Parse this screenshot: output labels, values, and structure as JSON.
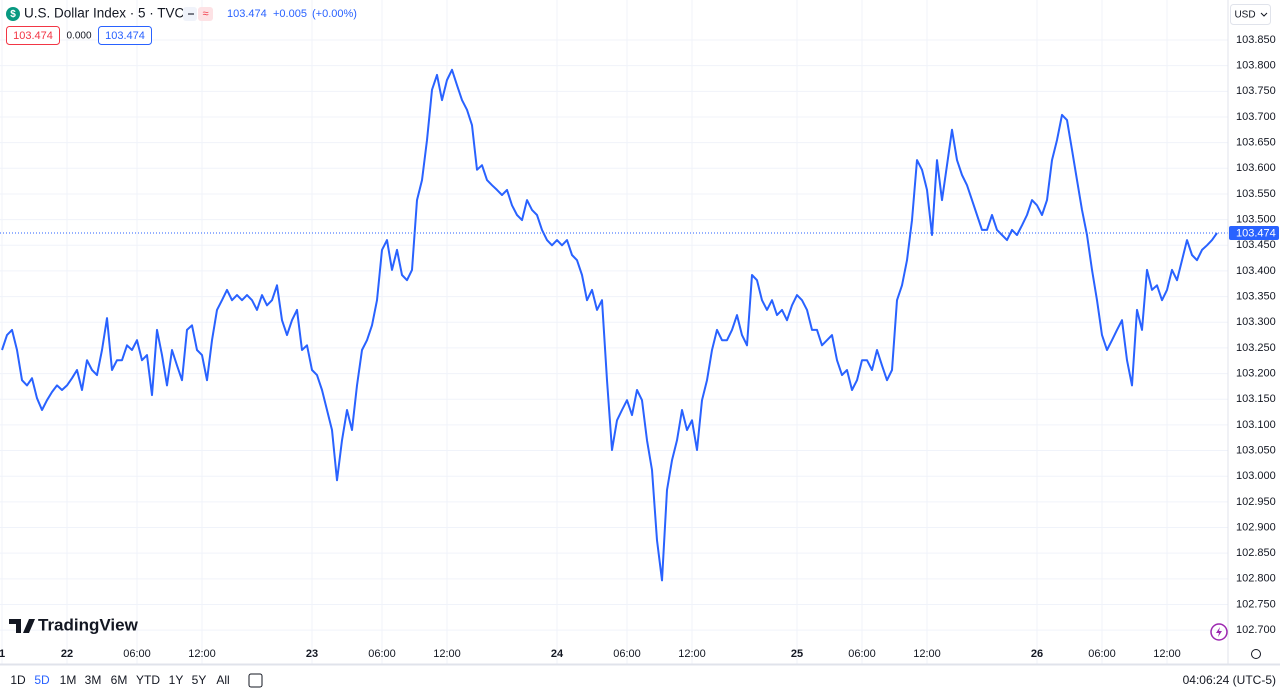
{
  "header": {
    "symbol": "U.S. Dollar Index · 5 · TVC",
    "price": "103.474",
    "change": "+0.005",
    "change_pct": "(+0.00%)",
    "boxes": [
      "103.474",
      "0.000",
      "103.474"
    ],
    "currency": "USD"
  },
  "price_tag": "103.474",
  "watermark": "TradingView",
  "toolbar": {
    "ranges": [
      "1D",
      "5D",
      "1M",
      "3M",
      "6M",
      "YTD",
      "1Y",
      "5Y",
      "All"
    ],
    "clock": "04:06:24 (UTC-5)"
  },
  "chart_data": {
    "type": "line",
    "color": "#2962ff",
    "grid": true,
    "ylim": [
      102.634,
      103.928
    ],
    "yticks": [
      {
        "value": 102.7,
        "label": "102.700"
      },
      {
        "value": 102.75,
        "label": "102.750"
      },
      {
        "value": 102.8,
        "label": "102.800"
      },
      {
        "value": 102.85,
        "label": "102.850"
      },
      {
        "value": 102.9,
        "label": "102.900"
      },
      {
        "value": 102.95,
        "label": "102.950"
      },
      {
        "value": 103.0,
        "label": "103.000"
      },
      {
        "value": 103.05,
        "label": "103.050"
      },
      {
        "value": 103.1,
        "label": "103.100"
      },
      {
        "value": 103.15,
        "label": "103.150"
      },
      {
        "value": 103.2,
        "label": "103.200"
      },
      {
        "value": 103.25,
        "label": "103.250"
      },
      {
        "value": 103.3,
        "label": "103.300"
      },
      {
        "value": 103.35,
        "label": "103.350"
      },
      {
        "value": 103.4,
        "label": "103.400"
      },
      {
        "value": 103.45,
        "label": "103.450"
      },
      {
        "value": 103.5,
        "label": "103.500"
      },
      {
        "value": 103.55,
        "label": "103.550"
      },
      {
        "value": 103.6,
        "label": "103.600"
      },
      {
        "value": 103.65,
        "label": "103.650"
      },
      {
        "value": 103.7,
        "label": "103.700"
      },
      {
        "value": 103.75,
        "label": "103.750"
      },
      {
        "value": 103.8,
        "label": "103.800"
      },
      {
        "value": 103.85,
        "label": "103.850"
      }
    ],
    "categories": [
      "1",
      null,
      null,
      null,
      null,
      null,
      null,
      null,
      null,
      null,
      null,
      null,
      null,
      "22",
      null,
      null,
      null,
      null,
      null,
      null,
      null,
      null,
      null,
      null,
      null,
      null,
      null,
      "06:00",
      null,
      null,
      null,
      null,
      null,
      null,
      null,
      null,
      null,
      null,
      null,
      null,
      "12:00",
      null,
      null,
      null,
      null,
      null,
      null,
      null,
      null,
      null,
      null,
      null,
      null,
      null,
      null,
      null,
      null,
      null,
      null,
      null,
      null,
      null,
      "23",
      null,
      null,
      null,
      null,
      null,
      null,
      null,
      null,
      null,
      null,
      null,
      null,
      null,
      "06:00",
      null,
      null,
      null,
      null,
      null,
      null,
      null,
      null,
      null,
      null,
      null,
      null,
      "12:00",
      null,
      null,
      null,
      null,
      null,
      null,
      null,
      null,
      null,
      null,
      null,
      null,
      null,
      null,
      null,
      null,
      null,
      null,
      null,
      null,
      null,
      "24",
      null,
      null,
      null,
      null,
      null,
      null,
      null,
      null,
      null,
      null,
      null,
      null,
      null,
      "06:00",
      null,
      null,
      null,
      null,
      null,
      null,
      null,
      null,
      null,
      null,
      null,
      null,
      "12:00",
      null,
      null,
      null,
      null,
      null,
      null,
      null,
      null,
      null,
      null,
      null,
      null,
      null,
      null,
      null,
      null,
      null,
      null,
      null,
      null,
      "25",
      null,
      null,
      null,
      null,
      null,
      null,
      null,
      null,
      null,
      null,
      null,
      null,
      "06:00",
      null,
      null,
      null,
      null,
      null,
      null,
      null,
      null,
      null,
      null,
      null,
      null,
      "12:00",
      null,
      null,
      null,
      null,
      null,
      null,
      null,
      null,
      null,
      null,
      null,
      null,
      null,
      null,
      null,
      null,
      null,
      null,
      null,
      null,
      null,
      "26",
      null,
      null,
      null,
      null,
      null,
      null,
      null,
      null,
      null,
      null,
      null,
      null,
      "06:00",
      null,
      null,
      null,
      null,
      null,
      null,
      null,
      null,
      null,
      null,
      null,
      null,
      "12:00",
      null,
      null,
      null,
      null,
      null,
      null,
      null,
      null,
      null,
      null
    ],
    "values": [
      103.246,
      103.275,
      103.285,
      103.246,
      103.187,
      103.177,
      103.191,
      103.152,
      103.129,
      103.148,
      103.164,
      103.177,
      103.168,
      103.177,
      103.191,
      103.207,
      103.168,
      103.226,
      103.207,
      103.197,
      103.246,
      103.308,
      103.207,
      103.226,
      103.226,
      103.255,
      103.246,
      103.265,
      103.226,
      103.236,
      103.158,
      103.285,
      103.236,
      103.177,
      103.246,
      103.216,
      103.187,
      103.285,
      103.294,
      103.246,
      103.236,
      103.187,
      103.265,
      103.324,
      103.343,
      103.363,
      103.343,
      103.353,
      103.343,
      103.353,
      103.343,
      103.324,
      103.353,
      103.333,
      103.343,
      103.372,
      103.304,
      103.275,
      103.304,
      103.324,
      103.246,
      103.255,
      103.207,
      103.197,
      103.168,
      103.129,
      103.09,
      102.992,
      103.07,
      103.129,
      103.09,
      103.177,
      103.246,
      103.265,
      103.294,
      103.343,
      103.441,
      103.46,
      103.402,
      103.441,
      103.392,
      103.382,
      103.402,
      103.538,
      103.577,
      103.655,
      103.753,
      103.782,
      103.733,
      103.772,
      103.792,
      103.762,
      103.733,
      103.714,
      103.684,
      103.597,
      103.606,
      103.577,
      103.567,
      103.558,
      103.548,
      103.558,
      103.528,
      103.509,
      103.499,
      103.538,
      103.519,
      103.509,
      103.48,
      103.46,
      103.45,
      103.46,
      103.45,
      103.46,
      103.431,
      103.421,
      103.392,
      103.343,
      103.363,
      103.324,
      103.343,
      103.187,
      103.051,
      103.109,
      103.129,
      103.148,
      103.119,
      103.168,
      103.148,
      103.07,
      103.012,
      102.875,
      102.797,
      102.973,
      103.031,
      103.07,
      103.129,
      103.09,
      103.109,
      103.051,
      103.148,
      103.187,
      103.246,
      103.285,
      103.265,
      103.265,
      103.285,
      103.314,
      103.275,
      103.255,
      103.392,
      103.382,
      103.343,
      103.324,
      103.343,
      103.314,
      103.324,
      103.304,
      103.333,
      103.353,
      103.343,
      103.324,
      103.285,
      103.285,
      103.255,
      103.265,
      103.275,
      103.226,
      103.197,
      103.207,
      103.168,
      103.187,
      103.226,
      103.226,
      103.207,
      103.246,
      103.216,
      103.187,
      103.207,
      103.343,
      103.372,
      103.421,
      103.499,
      103.616,
      103.597,
      103.558,
      103.47,
      103.616,
      103.538,
      103.606,
      103.675,
      103.616,
      103.587,
      103.567,
      103.538,
      103.509,
      103.48,
      103.48,
      103.509,
      103.48,
      103.47,
      103.46,
      103.48,
      103.47,
      103.489,
      103.509,
      103.538,
      103.528,
      103.509,
      103.538,
      103.616,
      103.655,
      103.704,
      103.694,
      103.636,
      103.577,
      103.519,
      103.47,
      103.402,
      103.343,
      103.275,
      103.246,
      103.265,
      103.285,
      103.304,
      103.226,
      103.177,
      103.324,
      103.285,
      103.402,
      103.363,
      103.372,
      103.343,
      103.363,
      103.402,
      103.382,
      103.421,
      103.46,
      103.431,
      103.421,
      103.441,
      103.45,
      103.46,
      103.474
    ]
  }
}
